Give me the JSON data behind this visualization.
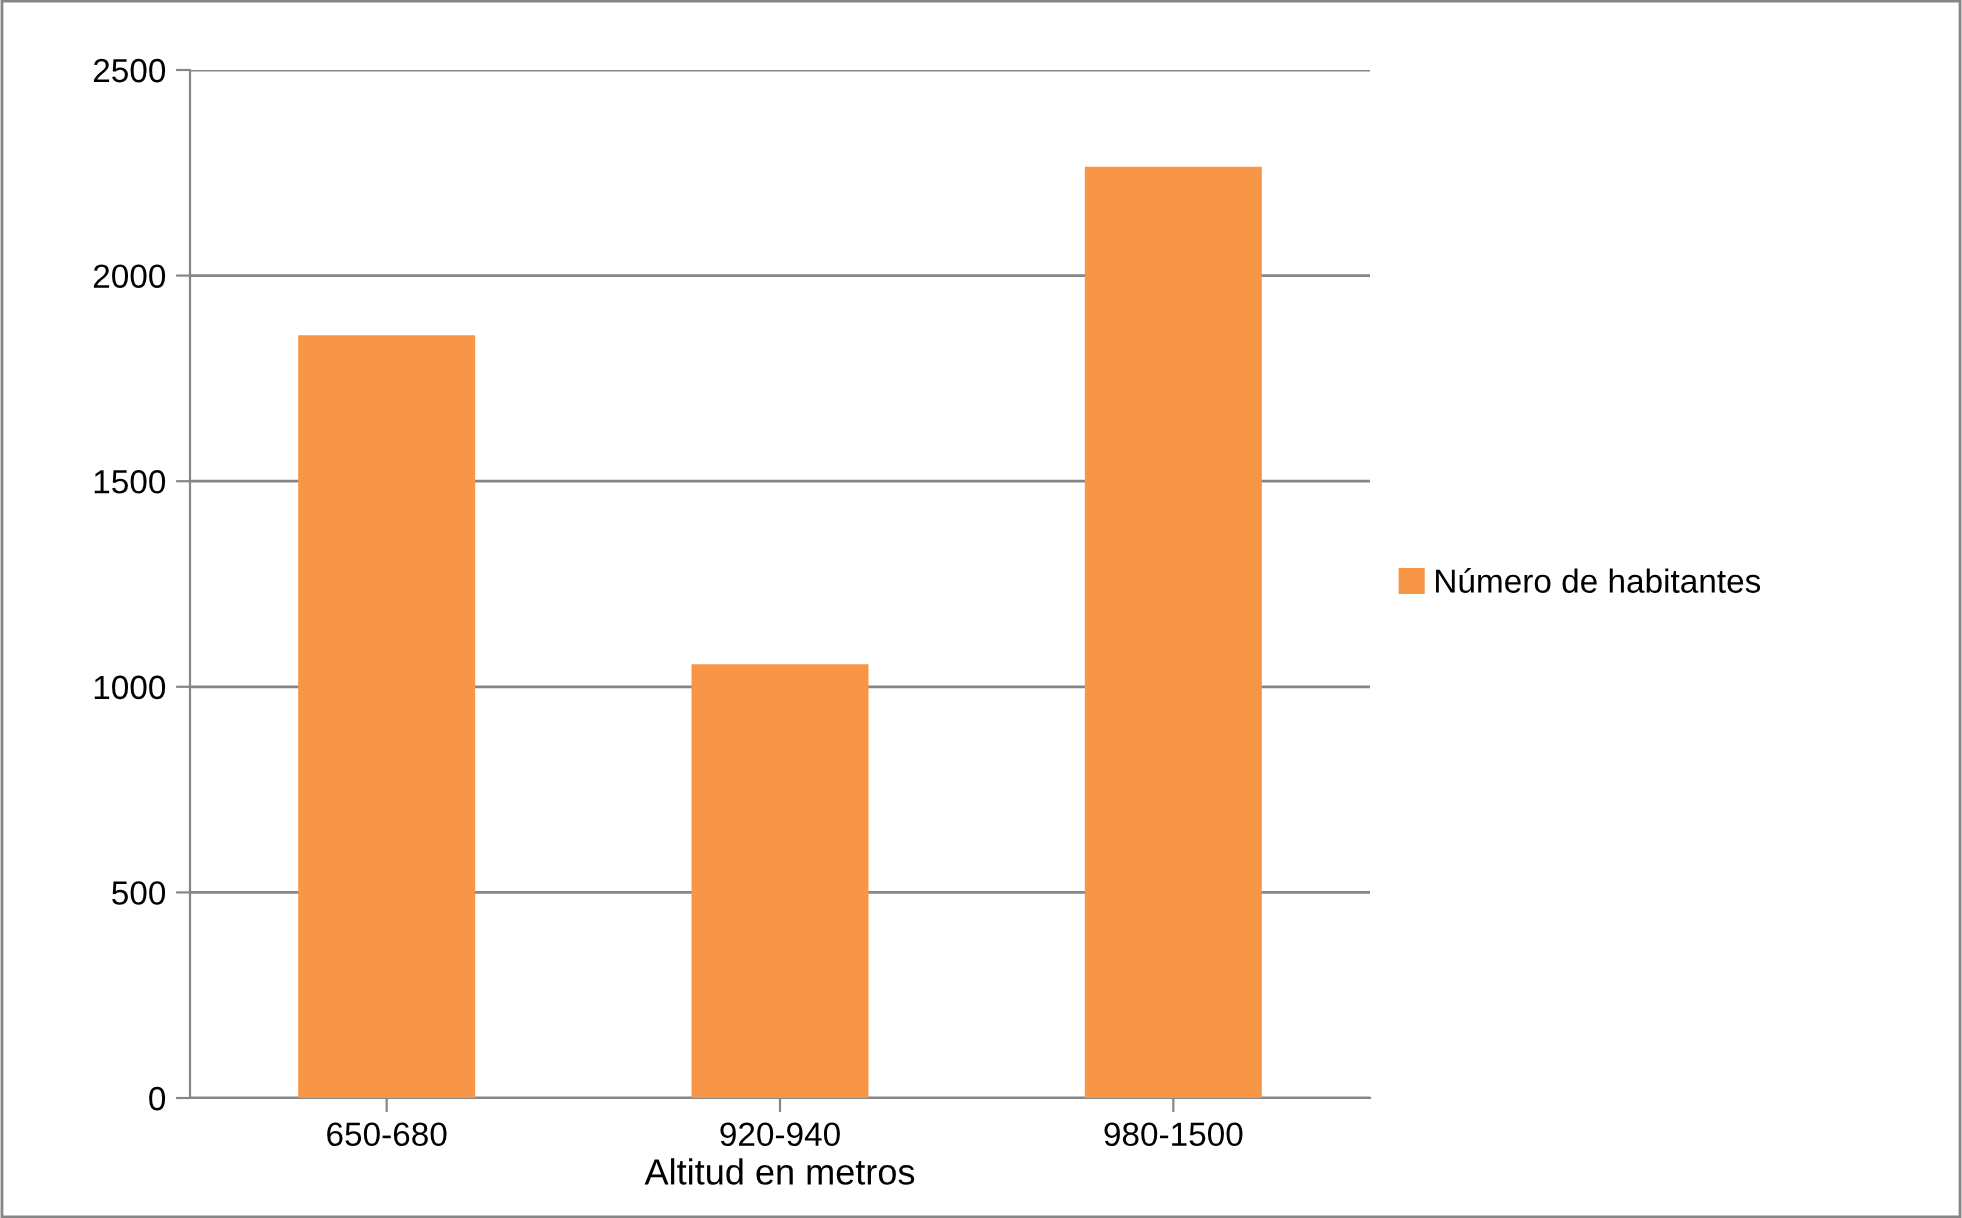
{
  "chart_data": {
    "type": "bar",
    "xlabel": "Altitud en metros",
    "categories": [
      "650-680",
      "920-940",
      "980-1500"
    ],
    "series": [
      {
        "name": "Número de habitantes",
        "color": "#f79646",
        "values": [
          1855,
          1055,
          2265
        ]
      }
    ],
    "ylim": [
      0,
      2500
    ],
    "yticks": [
      0,
      500,
      1000,
      1500,
      2000,
      2500
    ],
    "grid": "y",
    "legend": "right"
  }
}
